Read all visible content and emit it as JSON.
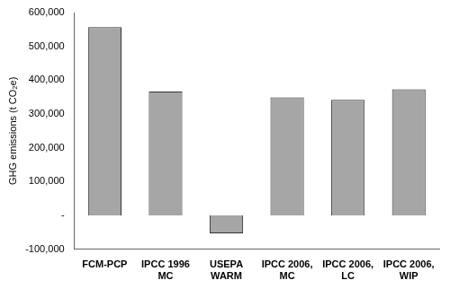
{
  "chart_data": {
    "type": "bar",
    "y_label": "GHG emissions (t CO₂e)",
    "categories": [
      "FCM-PCP",
      "IPCC 1996\nMC",
      "USEPA\nWARM",
      "IPCC 2006,\nMC",
      "IPCC 2006,\nLC",
      "IPCC 2006,\nWIP"
    ],
    "values": [
      557000,
      366000,
      -53000,
      349000,
      342000,
      373000
    ],
    "color": "#a6a6a6",
    "ylim": [
      -100000,
      600000
    ],
    "yticks": [
      {
        "value": -100000,
        "label": "-100,000"
      },
      {
        "value": 0,
        "label": "-"
      },
      {
        "value": 100000,
        "label": "100,000"
      },
      {
        "value": 200000,
        "label": "200,000"
      },
      {
        "value": 300000,
        "label": "300,000"
      },
      {
        "value": 400000,
        "label": "400,000"
      },
      {
        "value": 500000,
        "label": "500,000"
      },
      {
        "value": 600000,
        "label": "600,000"
      }
    ],
    "grid": false
  }
}
